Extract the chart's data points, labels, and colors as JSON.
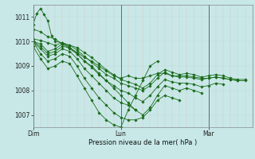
{
  "background_color": "#c8e8e8",
  "plot_background": "#c8e8e8",
  "line_color": "#1a6b1a",
  "ylim": [
    1006.5,
    1011.5
  ],
  "yticks": [
    1007,
    1008,
    1009,
    1010,
    1011
  ],
  "xlabel": "Pression niveau de la mer( hPa )",
  "day_labels": [
    "Dim",
    "Lun",
    "Mar"
  ],
  "day_positions": [
    0,
    48,
    96
  ],
  "total_hours": 120,
  "series": [
    {
      "x": [
        0,
        2,
        4,
        6,
        8,
        10,
        12,
        16,
        20,
        24,
        28,
        32,
        36,
        40,
        44,
        48,
        52,
        56,
        60,
        64,
        68,
        72,
        76,
        80,
        84,
        88,
        92,
        96,
        100,
        104,
        108,
        112,
        116
      ],
      "y": [
        1010.7,
        1011.15,
        1011.35,
        1011.1,
        1010.85,
        1010.25,
        1010.0,
        1009.95,
        1009.75,
        1009.55,
        1009.35,
        1009.2,
        1009.0,
        1008.8,
        1008.6,
        1008.5,
        1008.6,
        1008.5,
        1008.5,
        1008.6,
        1008.7,
        1008.7,
        1008.6,
        1008.6,
        1008.6,
        1008.55,
        1008.5,
        1008.5,
        1008.55,
        1008.5,
        1008.45,
        1008.4,
        1008.4
      ]
    },
    {
      "x": [
        0,
        4,
        8,
        12,
        16,
        20,
        24,
        28,
        32,
        36,
        40,
        44,
        48,
        52,
        56,
        60,
        64,
        68,
        72,
        76,
        80,
        84,
        88,
        92,
        96,
        100,
        104,
        108,
        112
      ],
      "y": [
        1010.0,
        1009.9,
        1009.6,
        1009.7,
        1009.9,
        1009.85,
        1009.65,
        1009.4,
        1009.15,
        1008.9,
        1008.65,
        1008.5,
        1008.3,
        1008.2,
        1008.1,
        1008.0,
        1008.2,
        1008.5,
        1008.75,
        1008.6,
        1008.55,
        1008.55,
        1008.5,
        1008.45,
        1008.5,
        1008.55,
        1008.5,
        1008.45,
        1008.4
      ]
    },
    {
      "x": [
        0,
        4,
        8,
        12,
        16,
        20,
        24,
        28,
        32,
        36,
        40,
        44,
        48,
        52,
        56,
        60,
        64,
        68,
        72,
        76,
        80,
        84,
        88,
        92,
        96,
        100,
        104
      ],
      "y": [
        1010.0,
        1009.8,
        1009.5,
        1009.6,
        1009.8,
        1009.75,
        1009.5,
        1009.2,
        1008.95,
        1008.65,
        1008.4,
        1008.2,
        1008.0,
        1007.9,
        1007.7,
        1007.55,
        1007.8,
        1008.15,
        1008.45,
        1008.35,
        1008.3,
        1008.3,
        1008.25,
        1008.15,
        1008.2,
        1008.3,
        1008.25
      ]
    },
    {
      "x": [
        0,
        4,
        8,
        12,
        16,
        20,
        24,
        28,
        32,
        36,
        40,
        44,
        48,
        52,
        56,
        60,
        64,
        68,
        72,
        76,
        80,
        84,
        88,
        92
      ],
      "y": [
        1010.0,
        1009.7,
        1009.4,
        1009.5,
        1009.7,
        1009.6,
        1009.3,
        1008.9,
        1008.6,
        1008.3,
        1008.0,
        1007.7,
        1007.5,
        1007.4,
        1007.2,
        1007.0,
        1007.3,
        1007.8,
        1008.2,
        1008.1,
        1008.0,
        1008.1,
        1008.0,
        1007.9
      ]
    },
    {
      "x": [
        0,
        4,
        8,
        12,
        16,
        20,
        24,
        28,
        32,
        36,
        40,
        44,
        48,
        52,
        56,
        60,
        64,
        68,
        72,
        76,
        80
      ],
      "y": [
        1010.0,
        1009.5,
        1009.2,
        1009.3,
        1009.5,
        1009.4,
        1009.0,
        1008.5,
        1008.1,
        1007.7,
        1007.4,
        1007.1,
        1006.9,
        1006.8,
        1006.8,
        1006.9,
        1007.2,
        1007.6,
        1007.8,
        1007.7,
        1007.6
      ]
    },
    {
      "x": [
        0,
        4,
        8,
        12,
        16,
        20,
        24,
        28,
        32,
        36,
        40,
        44,
        48,
        52,
        56,
        60,
        64,
        68
      ],
      "y": [
        1009.8,
        1009.3,
        1008.9,
        1009.0,
        1009.2,
        1009.1,
        1008.6,
        1008.1,
        1007.6,
        1007.1,
        1006.8,
        1006.6,
        1006.5,
        1007.2,
        1007.8,
        1008.4,
        1009.0,
        1009.2
      ]
    },
    {
      "x": [
        0,
        4,
        8,
        12,
        16,
        20,
        24,
        28,
        32,
        36,
        40,
        44,
        48,
        52,
        56
      ],
      "y": [
        1010.5,
        1010.4,
        1010.2,
        1010.1,
        1009.9,
        1009.7,
        1009.5,
        1009.2,
        1009.0,
        1008.7,
        1008.4,
        1008.1,
        1007.8,
        1007.5,
        1007.2
      ]
    },
    {
      "x": [
        0,
        4,
        8,
        12,
        16,
        20,
        24,
        28,
        32,
        36,
        40,
        44,
        48,
        52,
        56,
        60,
        64,
        68,
        72,
        76,
        80,
        84,
        88,
        92,
        96,
        100,
        104,
        108,
        112,
        116
      ],
      "y": [
        1010.1,
        1010.05,
        1009.95,
        1009.85,
        1009.95,
        1009.85,
        1009.75,
        1009.55,
        1009.35,
        1009.1,
        1008.85,
        1008.65,
        1008.45,
        1008.35,
        1008.25,
        1008.1,
        1008.3,
        1008.65,
        1008.85,
        1008.75,
        1008.65,
        1008.7,
        1008.65,
        1008.55,
        1008.6,
        1008.65,
        1008.6,
        1008.5,
        1008.45,
        1008.45
      ]
    }
  ]
}
